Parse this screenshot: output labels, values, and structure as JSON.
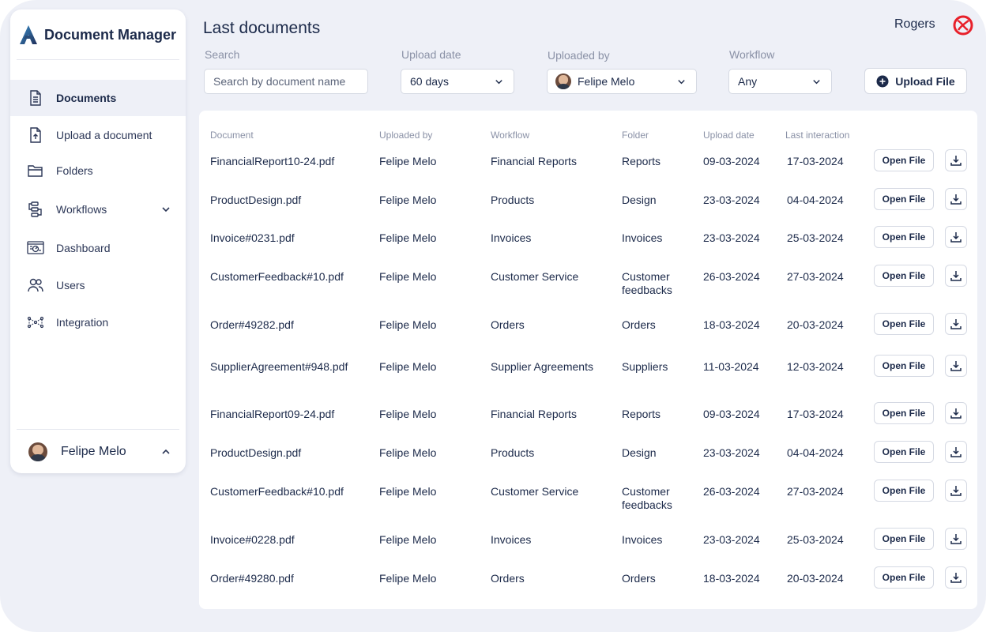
{
  "app": {
    "title": "Document Manager"
  },
  "sidebar": {
    "items": [
      {
        "label": "Documents",
        "icon": "document-icon",
        "active": true
      },
      {
        "label": "Upload a document",
        "icon": "upload-document-icon"
      },
      {
        "label": "Folders",
        "icon": "folder-icon"
      },
      {
        "label": "Workflows",
        "icon": "workflow-icon",
        "expandable": true
      },
      {
        "label": "Dashboard",
        "icon": "dashboard-icon"
      },
      {
        "label": "Users",
        "icon": "users-icon"
      },
      {
        "label": "Integration",
        "icon": "integration-icon"
      }
    ],
    "user": {
      "name": "Felipe Melo"
    }
  },
  "header": {
    "title": "Last documents",
    "account_name": "Rogers"
  },
  "filters": {
    "search": {
      "label": "Search",
      "placeholder": "Search by document name"
    },
    "upload_date": {
      "label": "Upload date",
      "value": "60 days"
    },
    "uploaded_by": {
      "label": "Uploaded by",
      "value": "Felipe Melo"
    },
    "workflow": {
      "label": "Workflow",
      "value": "Any"
    },
    "upload_button": "Upload File"
  },
  "table": {
    "columns": [
      "Document",
      "Uploaded by",
      "Workflow",
      "Folder",
      "Upload date",
      "Last interaction"
    ],
    "open_label": "Open File",
    "rows": [
      {
        "document": "FinancialReport10-24.pdf",
        "uploaded_by": "Felipe Melo",
        "workflow": "Financial Reports",
        "folder": "Reports",
        "upload_date": "09-03-2024",
        "last_interaction": "17-03-2024"
      },
      {
        "document": "ProductDesign.pdf",
        "uploaded_by": "Felipe Melo",
        "workflow": "Products",
        "folder": "Design",
        "upload_date": "23-03-2024",
        "last_interaction": "04-04-2024"
      },
      {
        "document": "Invoice#0231.pdf",
        "uploaded_by": "Felipe Melo",
        "workflow": "Invoices",
        "folder": "Invoices",
        "upload_date": "23-03-2024",
        "last_interaction": "25-03-2024"
      },
      {
        "document": "CustomerFeedback#10.pdf",
        "uploaded_by": "Felipe Melo",
        "workflow": "Customer Service",
        "folder": "Customer feedbacks",
        "upload_date": "26-03-2024",
        "last_interaction": "27-03-2024"
      },
      {
        "document": "Order#49282.pdf",
        "uploaded_by": "Felipe Melo",
        "workflow": "Orders",
        "folder": "Orders",
        "upload_date": "18-03-2024",
        "last_interaction": "20-03-2024"
      },
      {
        "document": "SupplierAgreement#948.pdf",
        "uploaded_by": "Felipe Melo",
        "workflow": "Supplier Agreements",
        "folder": "Suppliers",
        "upload_date": "11-03-2024",
        "last_interaction": "12-03-2024"
      },
      {
        "document": "FinancialReport09-24.pdf",
        "uploaded_by": "Felipe Melo",
        "workflow": "Financial Reports",
        "folder": "Reports",
        "upload_date": "09-03-2024",
        "last_interaction": "17-03-2024"
      },
      {
        "document": "ProductDesign.pdf",
        "uploaded_by": "Felipe Melo",
        "workflow": "Products",
        "folder": "Design",
        "upload_date": "23-03-2024",
        "last_interaction": "04-04-2024"
      },
      {
        "document": "CustomerFeedback#10.pdf",
        "uploaded_by": "Felipe Melo",
        "workflow": "Customer Service",
        "folder": "Customer feedbacks",
        "upload_date": "26-03-2024",
        "last_interaction": "27-03-2024"
      },
      {
        "document": "Invoice#0228.pdf",
        "uploaded_by": "Felipe Melo",
        "workflow": "Invoices",
        "folder": "Invoices",
        "upload_date": "23-03-2024",
        "last_interaction": "25-03-2024"
      },
      {
        "document": "Order#49280.pdf",
        "uploaded_by": "Felipe Melo",
        "workflow": "Orders",
        "folder": "Orders",
        "upload_date": "18-03-2024",
        "last_interaction": "20-03-2024"
      }
    ]
  },
  "colors": {
    "background": "#eef0f7",
    "text": "#1c2a4a",
    "muted": "#8a91a6",
    "brand_logo": "#e8202a",
    "border": "#d5d9e3"
  }
}
